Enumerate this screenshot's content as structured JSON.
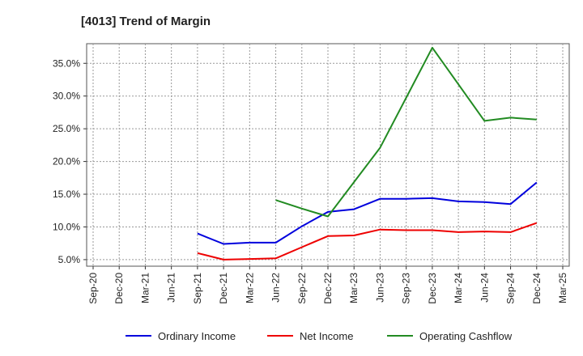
{
  "chart_data": {
    "type": "line",
    "title": "[4013]  Trend of Margin",
    "xlabel": "",
    "ylabel": "",
    "categories": [
      "Sep-20",
      "Dec-20",
      "Mar-21",
      "Jun-21",
      "Sep-21",
      "Dec-21",
      "Mar-22",
      "Jun-22",
      "Sep-22",
      "Dec-22",
      "Mar-23",
      "Jun-23",
      "Sep-23",
      "Dec-23",
      "Mar-24",
      "Jun-24",
      "Sep-24",
      "Dec-24",
      "Mar-25"
    ],
    "ylim": [
      4.0,
      38.0
    ],
    "yticks": [
      5.0,
      10.0,
      15.0,
      20.0,
      25.0,
      30.0,
      35.0
    ],
    "ytick_labels": [
      "5.0%",
      "10.0%",
      "15.0%",
      "20.0%",
      "25.0%",
      "30.0%",
      "35.0%"
    ],
    "grid": true,
    "legend_position": "bottom",
    "series": [
      {
        "name": "Ordinary Income",
        "color": "#0000dd",
        "values": [
          null,
          null,
          null,
          null,
          9.0,
          7.4,
          7.6,
          7.6,
          10.1,
          12.3,
          12.7,
          14.3,
          14.3,
          14.4,
          13.9,
          13.8,
          13.5,
          16.8,
          null
        ]
      },
      {
        "name": "Net Income",
        "color": "#ee0000",
        "values": [
          null,
          null,
          null,
          null,
          6.0,
          5.0,
          5.1,
          5.2,
          6.9,
          8.6,
          8.7,
          9.6,
          9.5,
          9.5,
          9.2,
          9.3,
          9.2,
          10.6,
          null
        ]
      },
      {
        "name": "Operating Cashflow",
        "color": "#228b22",
        "values": [
          null,
          null,
          null,
          null,
          null,
          null,
          null,
          14.1,
          12.8,
          11.6,
          null,
          22.1,
          null,
          37.4,
          null,
          26.2,
          26.7,
          26.4,
          null
        ]
      }
    ]
  }
}
